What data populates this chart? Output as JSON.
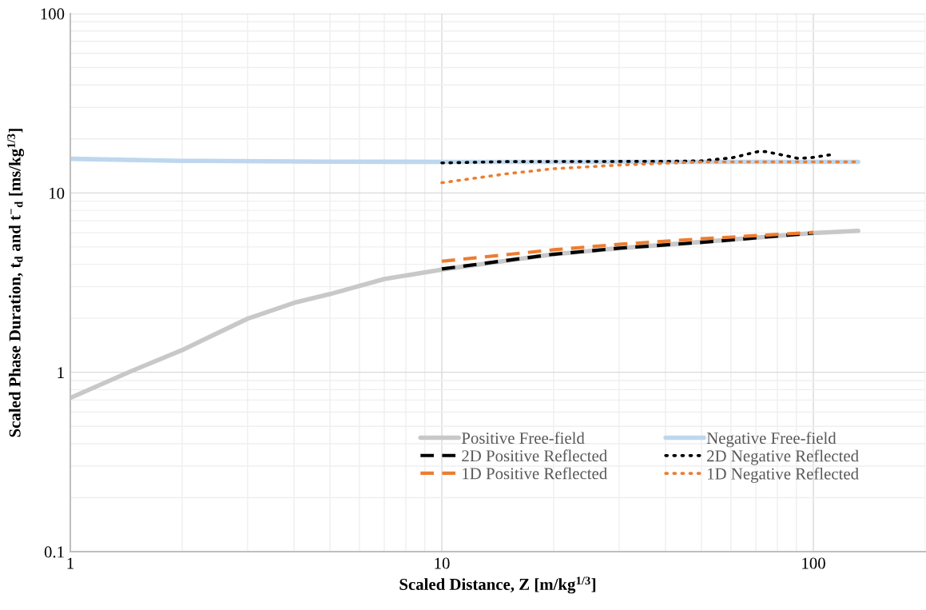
{
  "chart_data": {
    "type": "line",
    "xlabel": "Scaled Distance, Z [m/kg$^{1/3}$]",
    "ylabel": "Scaled Phase Duration, t$_{d}$ and t$^{−}$$_{d}$ [ms/kg$^{1/3}$]",
    "log": "xy",
    "xlim": [
      1,
      200
    ],
    "ylim": [
      0.1,
      100
    ],
    "xticks": [
      1,
      10,
      100
    ],
    "yticks": [
      0.1,
      1,
      10,
      100
    ],
    "grid": true,
    "legend": "bottom right",
    "series": [
      {
        "name": "Positive Free-field",
        "color": "#c8c8c8",
        "line_style": "solid",
        "x": [
          1,
          1.45,
          2,
          3,
          4,
          5,
          7,
          10,
          20,
          30,
          50,
          100,
          132
        ],
        "values": [
          0.72,
          1.01,
          1.33,
          1.99,
          2.44,
          2.73,
          3.31,
          3.74,
          4.55,
          4.92,
          5.33,
          5.98,
          6.15
        ]
      },
      {
        "name": "Negative Free-field",
        "color": "#bdd7ee",
        "line_style": "solid",
        "x": [
          1,
          2,
          5,
          10,
          30,
          100,
          132
        ],
        "values": [
          15.5,
          15.1,
          14.95,
          14.9,
          14.9,
          14.9,
          14.9
        ]
      },
      {
        "name": "2D Positive Reflected",
        "color": "#000000",
        "line_style": "dashed",
        "x": [
          10,
          20,
          30,
          50,
          100
        ],
        "values": [
          3.77,
          4.55,
          4.92,
          5.3,
          5.98
        ]
      },
      {
        "name": "2D Negative Reflected",
        "color": "#000000",
        "line_style": "dotted",
        "x": [
          10,
          15,
          40,
          50,
          60.4,
          70.9,
          74.2,
          83.5,
          90.6,
          98,
          110.6
        ],
        "values": [
          14.7,
          14.95,
          15.0,
          15.1,
          15.7,
          17.0,
          17.0,
          16.2,
          15.6,
          15.7,
          16.3
        ]
      },
      {
        "name": "1D Positive Reflected",
        "color": "#ed7d31",
        "line_style": "dashed",
        "x": [
          10,
          20,
          30,
          50,
          100
        ],
        "values": [
          4.16,
          4.82,
          5.17,
          5.55,
          6.03
        ]
      },
      {
        "name": "1D Negative Reflected",
        "color": "#ed7d31",
        "line_style": "dotted",
        "x": [
          10,
          15,
          20,
          30,
          40,
          50,
          100,
          132
        ],
        "values": [
          11.4,
          12.8,
          13.65,
          14.3,
          14.65,
          14.9,
          14.9,
          14.9
        ]
      }
    ]
  }
}
